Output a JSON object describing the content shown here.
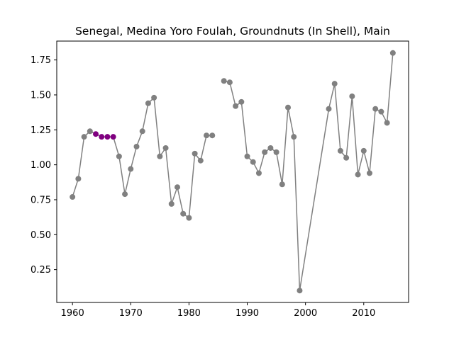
{
  "chart_data": {
    "type": "line",
    "title": "Senegal, Medina Yoro Foulah, Groundnuts (In Shell), Main",
    "xlabel": "",
    "ylabel": "",
    "xlim": [
      1957.3,
      2017.7
    ],
    "ylim": [
      0.015,
      1.885
    ],
    "x_ticks": [
      1960,
      1970,
      1980,
      1990,
      2000,
      2010
    ],
    "y_ticks": [
      0.25,
      0.5,
      0.75,
      1.0,
      1.25,
      1.5,
      1.75
    ],
    "grid": false,
    "line_color": "#808080",
    "point_color": "#808080",
    "highlight_color": "#800080",
    "highlight_x": [
      1964,
      1965,
      1966,
      1967
    ],
    "segments": [
      {
        "x": [
          1960,
          1961,
          1962,
          1963,
          1964,
          1965,
          1966,
          1967,
          1968,
          1969,
          1970,
          1971,
          1972,
          1973,
          1974,
          1975,
          1976,
          1977,
          1978,
          1979,
          1980,
          1981,
          1982,
          1983,
          1984
        ],
        "y": [
          0.77,
          0.9,
          1.2,
          1.24,
          1.22,
          1.2,
          1.2,
          1.2,
          1.06,
          0.79,
          0.97,
          1.13,
          1.24,
          1.44,
          1.48,
          1.06,
          1.12,
          0.72,
          0.84,
          0.65,
          0.62,
          1.08,
          1.03,
          1.21,
          1.21
        ]
      },
      {
        "x": [
          1986,
          1987,
          1988,
          1989,
          1990,
          1991,
          1992,
          1993,
          1994,
          1995,
          1996,
          1997,
          1998,
          1999,
          2004,
          2005,
          2006,
          2007,
          2008,
          2009,
          2010,
          2011,
          2012,
          2013,
          2014,
          2015
        ],
        "y": [
          1.6,
          1.59,
          1.42,
          1.45,
          1.06,
          1.02,
          0.94,
          1.09,
          1.12,
          1.09,
          0.86,
          1.41,
          1.2,
          0.1,
          1.4,
          1.58,
          1.1,
          1.05,
          1.49,
          0.93,
          1.1,
          0.94,
          1.4,
          1.38,
          1.3,
          1.8
        ]
      }
    ]
  }
}
